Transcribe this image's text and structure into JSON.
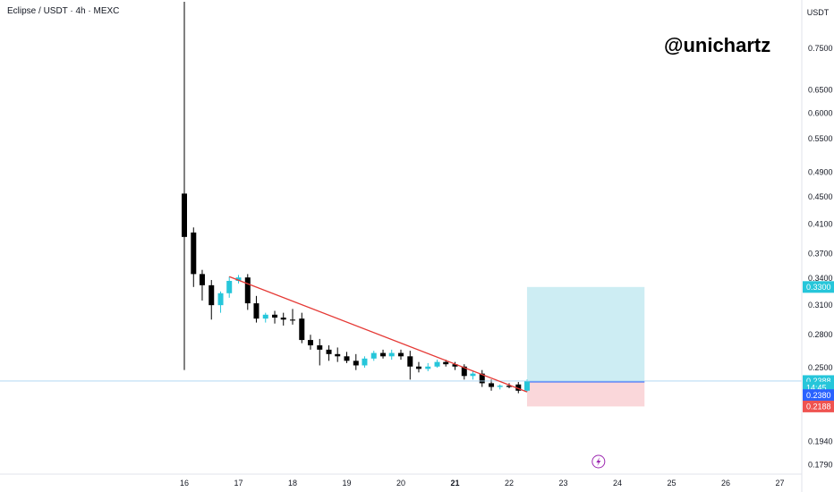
{
  "header": {
    "title": "Eclipse / USDT · 4h · MEXC"
  },
  "watermark": "@unichartz",
  "colors": {
    "up": "#26c6da",
    "down": "#000000",
    "trendline": "#e53935",
    "target_zone": "#b2e3ec",
    "stop_zone": "#f8c9ce",
    "badge_target": "#26c6da",
    "badge_price": "#26c6da",
    "badge_entry": "#2962ff",
    "badge_stop": "#ef5350",
    "price_line": "#2962ff"
  },
  "chart_data": {
    "type": "candlestick",
    "title": "Eclipse / USDT · 4h · MEXC",
    "x_axis": {
      "tick_labels": [
        "16",
        "17",
        "18",
        "19",
        "20",
        "21",
        "22",
        "23",
        "24",
        "25",
        "26",
        "27"
      ],
      "bold_tick": "21",
      "range": [
        "16",
        "27"
      ]
    },
    "y_axis": {
      "unit": "USDT",
      "scale": "log",
      "tick_labels": [
        "0.7500",
        "0.6500",
        "0.6000",
        "0.5500",
        "0.4900",
        "0.4500",
        "0.4100",
        "0.3700",
        "0.3400",
        "0.3100",
        "0.2800",
        "0.2500",
        "0.1940",
        "0.1790"
      ],
      "range": [
        0.175,
        0.88
      ]
    },
    "price_badges": [
      {
        "label": "0.3300",
        "value": 0.33,
        "role": "target"
      },
      {
        "label": "0.2388",
        "value": 0.2388,
        "role": "last-price"
      },
      {
        "label": "14:45",
        "value": 0.2335,
        "role": "countdown"
      },
      {
        "label": "0.2380",
        "value": 0.2275,
        "role": "entry"
      },
      {
        "label": "0.2188",
        "value": 0.2188,
        "role": "stop"
      }
    ],
    "candles": [
      {
        "d": 16.0,
        "o": 0.455,
        "h": 0.88,
        "l": 0.248,
        "c": 0.392
      },
      {
        "d": 16.17,
        "o": 0.398,
        "h": 0.405,
        "l": 0.33,
        "c": 0.345
      },
      {
        "d": 16.33,
        "o": 0.345,
        "h": 0.35,
        "l": 0.315,
        "c": 0.332
      },
      {
        "d": 16.5,
        "o": 0.332,
        "h": 0.338,
        "l": 0.295,
        "c": 0.31
      },
      {
        "d": 16.67,
        "o": 0.31,
        "h": 0.325,
        "l": 0.302,
        "c": 0.323
      },
      {
        "d": 16.83,
        "o": 0.323,
        "h": 0.342,
        "l": 0.318,
        "c": 0.337
      },
      {
        "d": 17.0,
        "o": 0.337,
        "h": 0.344,
        "l": 0.334,
        "c": 0.341
      },
      {
        "d": 17.17,
        "o": 0.341,
        "h": 0.345,
        "l": 0.305,
        "c": 0.312
      },
      {
        "d": 17.33,
        "o": 0.312,
        "h": 0.32,
        "l": 0.292,
        "c": 0.296
      },
      {
        "d": 17.5,
        "o": 0.296,
        "h": 0.302,
        "l": 0.292,
        "c": 0.3
      },
      {
        "d": 17.67,
        "o": 0.3,
        "h": 0.304,
        "l": 0.291,
        "c": 0.297
      },
      {
        "d": 17.83,
        "o": 0.297,
        "h": 0.302,
        "l": 0.289,
        "c": 0.295
      },
      {
        "d": 18.0,
        "o": 0.295,
        "h": 0.306,
        "l": 0.29,
        "c": 0.294
      },
      {
        "d": 18.17,
        "o": 0.296,
        "h": 0.302,
        "l": 0.272,
        "c": 0.275
      },
      {
        "d": 18.33,
        "o": 0.275,
        "h": 0.28,
        "l": 0.266,
        "c": 0.27
      },
      {
        "d": 18.5,
        "o": 0.27,
        "h": 0.276,
        "l": 0.252,
        "c": 0.266
      },
      {
        "d": 18.67,
        "o": 0.266,
        "h": 0.27,
        "l": 0.256,
        "c": 0.262
      },
      {
        "d": 18.83,
        "o": 0.262,
        "h": 0.268,
        "l": 0.255,
        "c": 0.26
      },
      {
        "d": 19.0,
        "o": 0.26,
        "h": 0.264,
        "l": 0.254,
        "c": 0.256
      },
      {
        "d": 19.17,
        "o": 0.256,
        "h": 0.262,
        "l": 0.248,
        "c": 0.252
      },
      {
        "d": 19.33,
        "o": 0.252,
        "h": 0.26,
        "l": 0.25,
        "c": 0.258
      },
      {
        "d": 19.5,
        "o": 0.258,
        "h": 0.265,
        "l": 0.256,
        "c": 0.263
      },
      {
        "d": 19.67,
        "o": 0.263,
        "h": 0.266,
        "l": 0.258,
        "c": 0.26
      },
      {
        "d": 19.83,
        "o": 0.26,
        "h": 0.266,
        "l": 0.257,
        "c": 0.263
      },
      {
        "d": 20.0,
        "o": 0.263,
        "h": 0.266,
        "l": 0.257,
        "c": 0.26
      },
      {
        "d": 20.17,
        "o": 0.26,
        "h": 0.265,
        "l": 0.24,
        "c": 0.251
      },
      {
        "d": 20.33,
        "o": 0.251,
        "h": 0.255,
        "l": 0.246,
        "c": 0.249
      },
      {
        "d": 20.5,
        "o": 0.249,
        "h": 0.254,
        "l": 0.247,
        "c": 0.251
      },
      {
        "d": 20.67,
        "o": 0.251,
        "h": 0.257,
        "l": 0.25,
        "c": 0.255
      },
      {
        "d": 20.83,
        "o": 0.255,
        "h": 0.257,
        "l": 0.251,
        "c": 0.253
      },
      {
        "d": 21.0,
        "o": 0.253,
        "h": 0.255,
        "l": 0.248,
        "c": 0.251
      },
      {
        "d": 21.17,
        "o": 0.251,
        "h": 0.253,
        "l": 0.24,
        "c": 0.243
      },
      {
        "d": 21.33,
        "o": 0.243,
        "h": 0.247,
        "l": 0.24,
        "c": 0.245
      },
      {
        "d": 21.5,
        "o": 0.245,
        "h": 0.248,
        "l": 0.234,
        "c": 0.237
      },
      {
        "d": 21.67,
        "o": 0.237,
        "h": 0.24,
        "l": 0.231,
        "c": 0.234
      },
      {
        "d": 21.83,
        "o": 0.234,
        "h": 0.236,
        "l": 0.232,
        "c": 0.235
      },
      {
        "d": 22.0,
        "o": 0.235,
        "h": 0.237,
        "l": 0.233,
        "c": 0.234
      },
      {
        "d": 22.17,
        "o": 0.236,
        "h": 0.238,
        "l": 0.229,
        "c": 0.231
      },
      {
        "d": 22.33,
        "o": 0.231,
        "h": 0.24,
        "l": 0.23,
        "c": 0.2388
      }
    ],
    "trendline": {
      "from": {
        "d": 16.83,
        "v": 0.342
      },
      "to": {
        "d": 22.33,
        "v": 0.23
      }
    },
    "position": {
      "start_d": 22.33,
      "end_d": 24.5,
      "target": 0.33,
      "entry": 0.238,
      "stop": 0.2188
    }
  }
}
